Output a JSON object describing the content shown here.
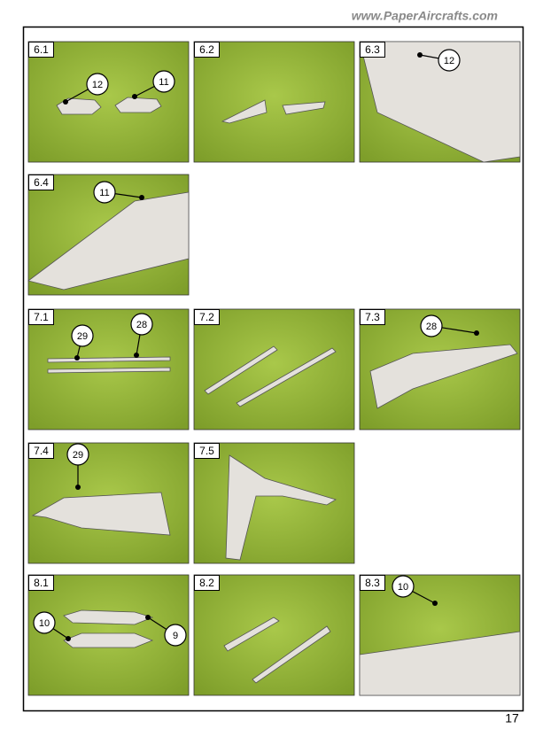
{
  "header": {
    "url": "www.PaperAircrafts.com"
  },
  "steps": [
    {
      "label": "6.1",
      "callouts": [
        "12",
        "11"
      ]
    },
    {
      "label": "6.2"
    },
    {
      "label": "6.3",
      "callouts": [
        "12"
      ]
    },
    {
      "label": "6.4",
      "callouts": [
        "11"
      ]
    },
    {
      "label": "7.1",
      "callouts": [
        "29",
        "28"
      ]
    },
    {
      "label": "7.2"
    },
    {
      "label": "7.3",
      "callouts": [
        "28"
      ]
    },
    {
      "label": "7.4",
      "callouts": [
        "29"
      ]
    },
    {
      "label": "7.5"
    },
    {
      "label": "8.1",
      "callouts": [
        "10",
        "9"
      ]
    },
    {
      "label": "8.2"
    },
    {
      "label": "8.3",
      "callouts": [
        "10"
      ]
    }
  ],
  "page_number": "17"
}
